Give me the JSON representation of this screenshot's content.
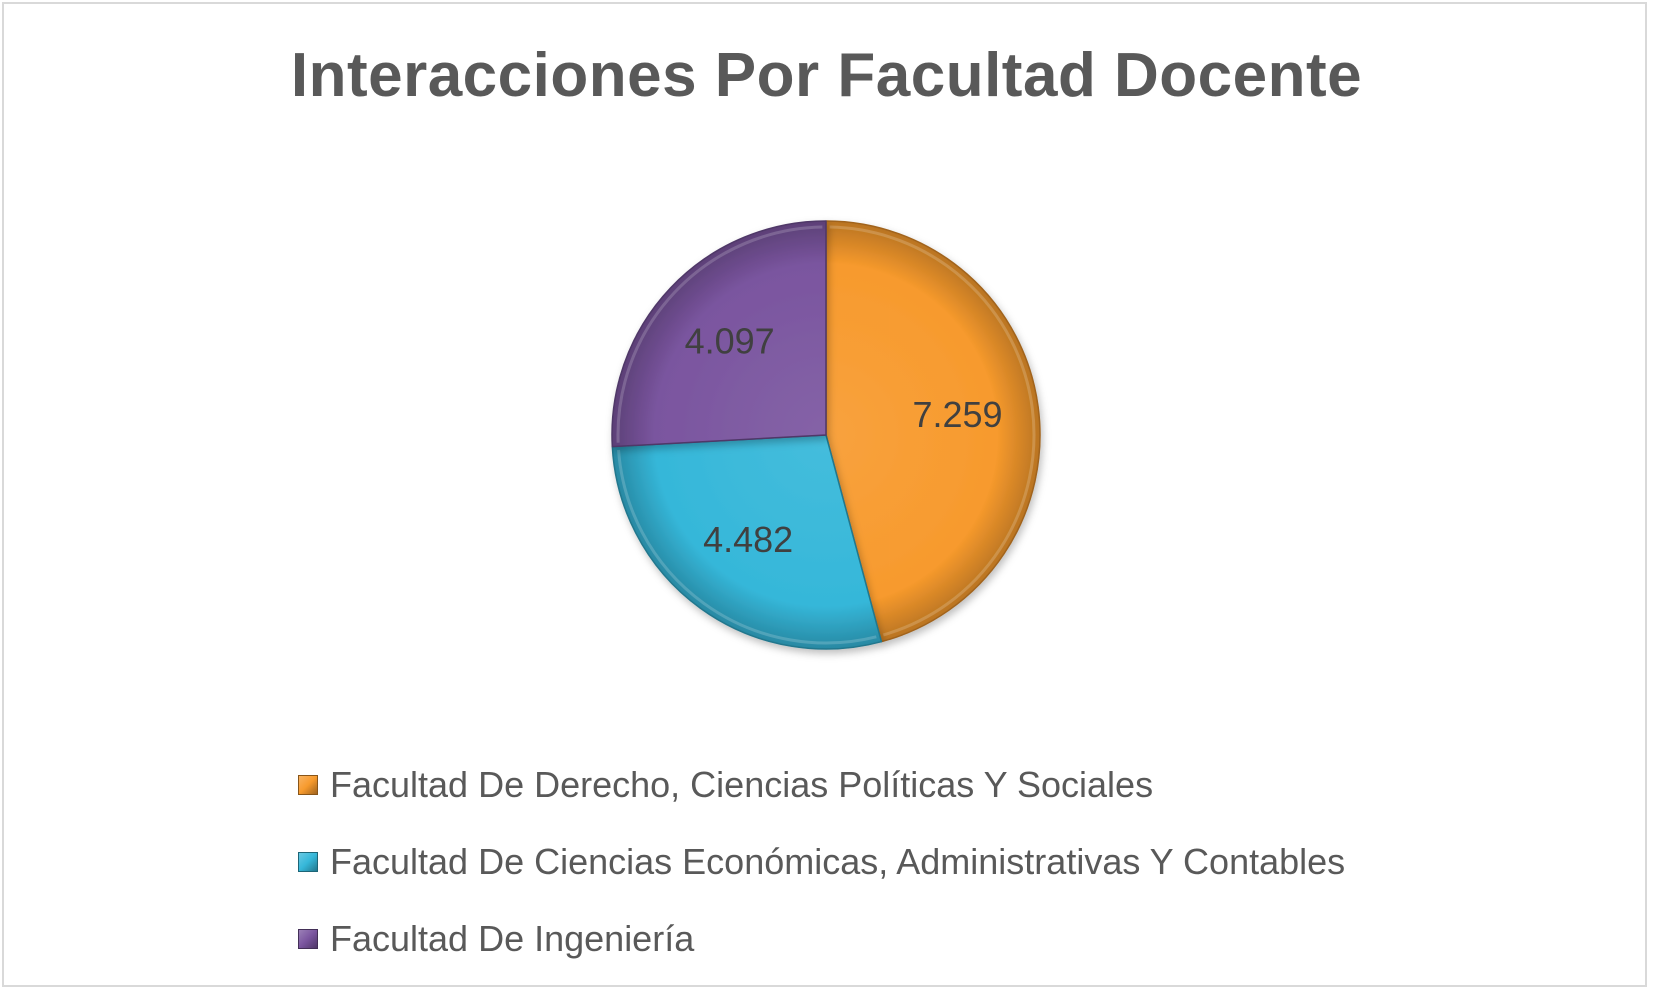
{
  "chart_data": {
    "type": "pie",
    "title": "Interacciones Por Facultad Docente",
    "categories": [
      "Facultad De Derecho, Ciencias Políticas Y Sociales",
      "Facultad De Ciencias Económicas, Administrativas Y Contables",
      "Facultad De Ingeniería"
    ],
    "values": [
      7259,
      4482,
      4097
    ],
    "value_labels": [
      "7.259",
      "4.482",
      "4.097"
    ],
    "colors": [
      "#f79a2d",
      "#35b7d9",
      "#7a559f"
    ],
    "legend_position": "bottom",
    "start_angle": "top, clockwise"
  }
}
